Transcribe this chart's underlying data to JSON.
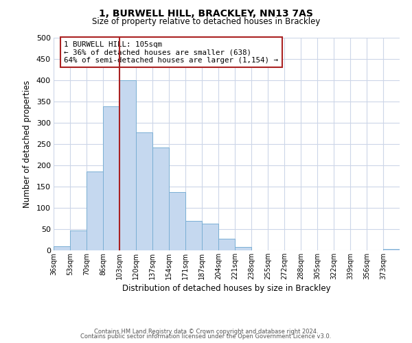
{
  "title": "1, BURWELL HILL, BRACKLEY, NN13 7AS",
  "subtitle": "Size of property relative to detached houses in Brackley",
  "xlabel": "Distribution of detached houses by size in Brackley",
  "ylabel": "Number of detached properties",
  "bar_color": "#c5d8ef",
  "bar_edge_color": "#7aafd4",
  "bin_labels": [
    "36sqm",
    "53sqm",
    "70sqm",
    "86sqm",
    "103sqm",
    "120sqm",
    "137sqm",
    "154sqm",
    "171sqm",
    "187sqm",
    "204sqm",
    "221sqm",
    "238sqm",
    "255sqm",
    "272sqm",
    "288sqm",
    "305sqm",
    "322sqm",
    "339sqm",
    "356sqm",
    "373sqm"
  ],
  "bar_heights": [
    10,
    47,
    185,
    338,
    400,
    277,
    242,
    137,
    70,
    63,
    27,
    8,
    0,
    0,
    0,
    0,
    0,
    0,
    0,
    0,
    3
  ],
  "ylim": [
    0,
    500
  ],
  "yticks": [
    0,
    50,
    100,
    150,
    200,
    250,
    300,
    350,
    400,
    450,
    500
  ],
  "vline_x_index": 4,
  "vline_color": "#aa2222",
  "annotation_title": "1 BURWELL HILL: 105sqm",
  "annotation_line1": "← 36% of detached houses are smaller (638)",
  "annotation_line2": "64% of semi-detached houses are larger (1,154) →",
  "annotation_box_edge": "#aa2222",
  "footer1": "Contains HM Land Registry data © Crown copyright and database right 2024.",
  "footer2": "Contains public sector information licensed under the Open Government Licence v3.0.",
  "background_color": "#ffffff",
  "grid_color": "#ccd6e8",
  "bin_width": 17
}
